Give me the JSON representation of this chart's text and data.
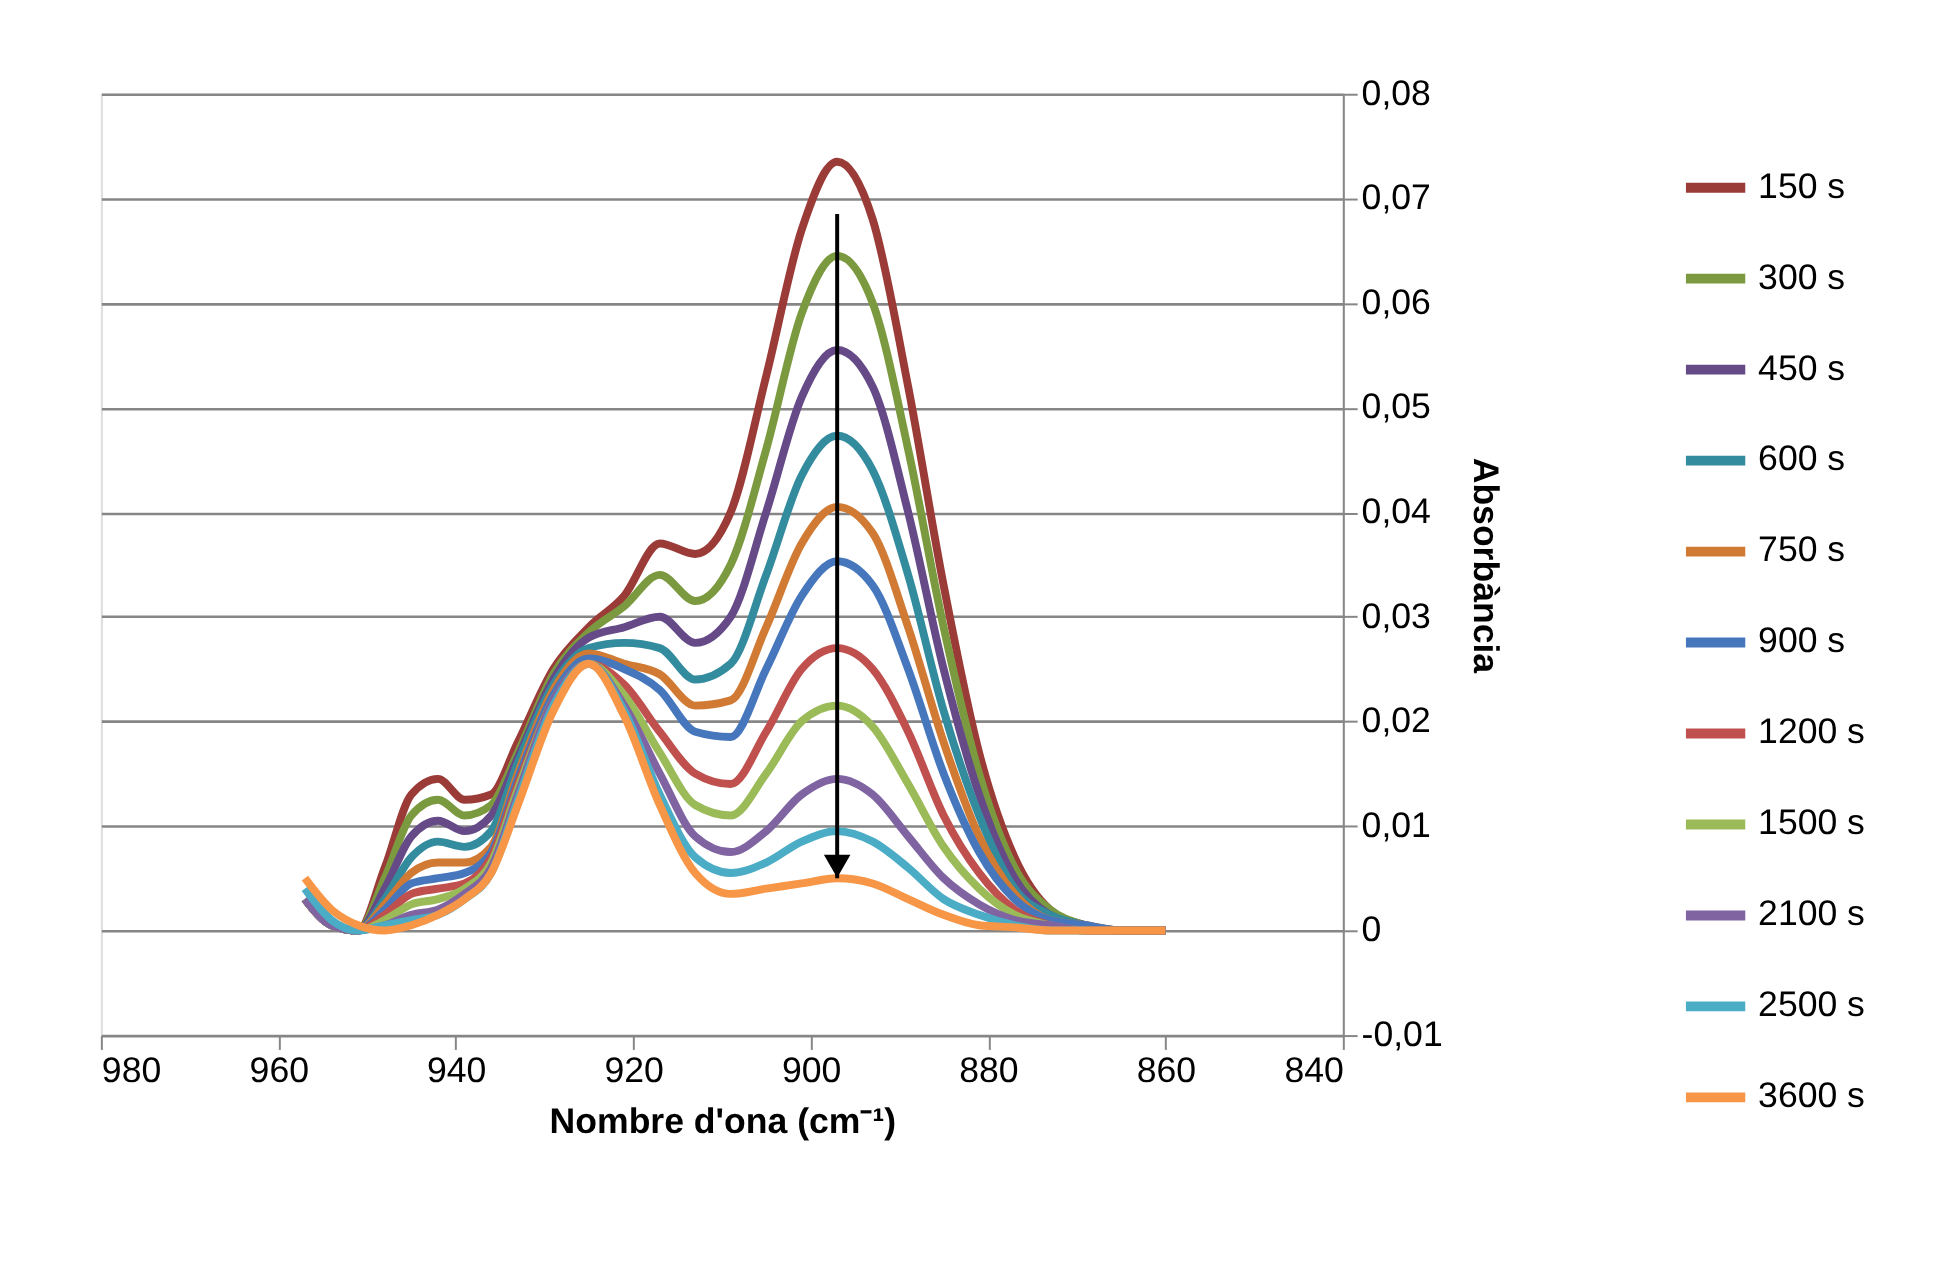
{
  "chart_data": {
    "type": "line",
    "xlabel": "Nombre d'ona (cm⁻¹)",
    "ylabel": "Absorbància",
    "x": [
      957,
      954,
      951,
      948,
      945,
      942,
      939,
      936,
      933,
      929,
      925,
      921,
      917,
      913,
      909,
      905,
      901,
      897,
      893,
      889,
      885,
      881,
      877,
      873,
      869,
      865,
      860
    ],
    "series": [
      {
        "name": "150 s",
        "color": "#9b3b38",
        "values": [
          0.003,
          0.0005,
          0,
          0.006,
          0.013,
          0.0145,
          0.0125,
          0.013,
          0.018,
          0.025,
          0.029,
          0.032,
          0.037,
          0.036,
          0.04,
          0.053,
          0.067,
          0.0735,
          0.068,
          0.052,
          0.033,
          0.017,
          0.007,
          0.002,
          0.0005,
          0,
          0
        ]
      },
      {
        "name": "300 s",
        "color": "#7b9a3f",
        "values": [
          0.003,
          0.0005,
          0,
          0.005,
          0.011,
          0.0125,
          0.011,
          0.012,
          0.017,
          0.0245,
          0.0285,
          0.031,
          0.034,
          0.0315,
          0.035,
          0.046,
          0.059,
          0.0645,
          0.06,
          0.046,
          0.029,
          0.015,
          0.006,
          0.002,
          0.0005,
          0,
          0
        ]
      },
      {
        "name": "450 s",
        "color": "#654a87",
        "values": [
          0.003,
          0.0005,
          0,
          0.004,
          0.009,
          0.0105,
          0.0095,
          0.011,
          0.0165,
          0.024,
          0.028,
          0.029,
          0.03,
          0.0275,
          0.03,
          0.04,
          0.051,
          0.0555,
          0.052,
          0.04,
          0.025,
          0.013,
          0.005,
          0.0015,
          0.0005,
          0,
          0
        ]
      },
      {
        "name": "600 s",
        "color": "#338b9e",
        "values": [
          0.003,
          0.0005,
          0,
          0.003,
          0.007,
          0.0085,
          0.008,
          0.0095,
          0.016,
          0.0235,
          0.027,
          0.0275,
          0.027,
          0.024,
          0.0255,
          0.034,
          0.0435,
          0.0473,
          0.044,
          0.034,
          0.021,
          0.011,
          0.004,
          0.0015,
          0.0005,
          0,
          0
        ]
      },
      {
        "name": "750 s",
        "color": "#d07a34",
        "values": [
          0.003,
          0.0005,
          0,
          0.0025,
          0.0055,
          0.0065,
          0.0065,
          0.008,
          0.015,
          0.023,
          0.0265,
          0.0255,
          0.0245,
          0.0215,
          0.022,
          0.029,
          0.037,
          0.0405,
          0.038,
          0.029,
          0.018,
          0.009,
          0.0035,
          0.001,
          0.0005,
          0,
          0
        ]
      },
      {
        "name": "900 s",
        "color": "#4677bd",
        "values": [
          0.003,
          0.0005,
          0,
          0.002,
          0.0045,
          0.005,
          0.0055,
          0.0075,
          0.0145,
          0.0225,
          0.026,
          0.025,
          0.023,
          0.019,
          0.0185,
          0.025,
          0.032,
          0.0353,
          0.033,
          0.025,
          0.015,
          0.0075,
          0.003,
          0.001,
          0.0005,
          0,
          0
        ]
      },
      {
        "name": "1200 s",
        "color": "#c0504d",
        "values": [
          0.003,
          0.0005,
          0,
          0.0015,
          0.0035,
          0.004,
          0.0045,
          0.007,
          0.014,
          0.022,
          0.0255,
          0.0235,
          0.019,
          0.015,
          0.014,
          0.019,
          0.025,
          0.027,
          0.025,
          0.019,
          0.011,
          0.0055,
          0.002,
          0.0005,
          0,
          0,
          0
        ]
      },
      {
        "name": "1500 s",
        "color": "#9bbb59",
        "values": [
          0.003,
          0.0005,
          0,
          0.001,
          0.0025,
          0.003,
          0.004,
          0.0065,
          0.0135,
          0.022,
          0.0255,
          0.0225,
          0.017,
          0.012,
          0.011,
          0.015,
          0.02,
          0.0215,
          0.0195,
          0.014,
          0.008,
          0.004,
          0.0015,
          0.0005,
          0,
          0,
          0
        ]
      },
      {
        "name": "2100 s",
        "color": "#8064a2",
        "values": [
          0.003,
          0.0005,
          0,
          0.0005,
          0.0015,
          0.002,
          0.0035,
          0.006,
          0.013,
          0.022,
          0.0255,
          0.0215,
          0.015,
          0.009,
          0.0075,
          0.0095,
          0.013,
          0.0145,
          0.013,
          0.009,
          0.005,
          0.0025,
          0.001,
          0.0005,
          0,
          0,
          0
        ]
      },
      {
        "name": "2500 s",
        "color": "#4bacc6",
        "values": [
          0.004,
          0.001,
          0,
          0.0005,
          0.001,
          0.0015,
          0.003,
          0.0055,
          0.0125,
          0.0215,
          0.0255,
          0.021,
          0.013,
          0.007,
          0.0055,
          0.0065,
          0.0085,
          0.0095,
          0.0085,
          0.006,
          0.003,
          0.0015,
          0.0005,
          0,
          0,
          null,
          null
        ]
      },
      {
        "name": "3600 s",
        "color": "#f79646",
        "values": [
          0.005,
          0.002,
          0.0005,
          0,
          0.0005,
          0.0015,
          0.003,
          0.0055,
          0.012,
          0.021,
          0.0255,
          0.0205,
          0.012,
          0.0055,
          0.0035,
          0.004,
          0.0045,
          0.005,
          0.0045,
          0.003,
          0.0015,
          0.0005,
          0.0003,
          0,
          0,
          0,
          0
        ]
      }
    ],
    "xlim": [
      980,
      840
    ],
    "xticks": [
      980,
      960,
      940,
      920,
      900,
      880,
      860,
      840
    ],
    "ylim": [
      -0.01,
      0.08
    ],
    "yticks": [
      {
        "value": -0.01,
        "label": "-0,01"
      },
      {
        "value": 0,
        "label": "0"
      },
      {
        "value": 0.01,
        "label": "0,01"
      },
      {
        "value": 0.02,
        "label": "0,02"
      },
      {
        "value": 0.03,
        "label": "0,03"
      },
      {
        "value": 0.04,
        "label": "0,04"
      },
      {
        "value": 0.05,
        "label": "0,05"
      },
      {
        "value": 0.06,
        "label": "0,06"
      },
      {
        "value": 0.07,
        "label": "0,07"
      },
      {
        "value": 0.08,
        "label": "0,08"
      }
    ],
    "grid": "y",
    "legend": "right",
    "marker": "none",
    "line_style": "solid"
  }
}
